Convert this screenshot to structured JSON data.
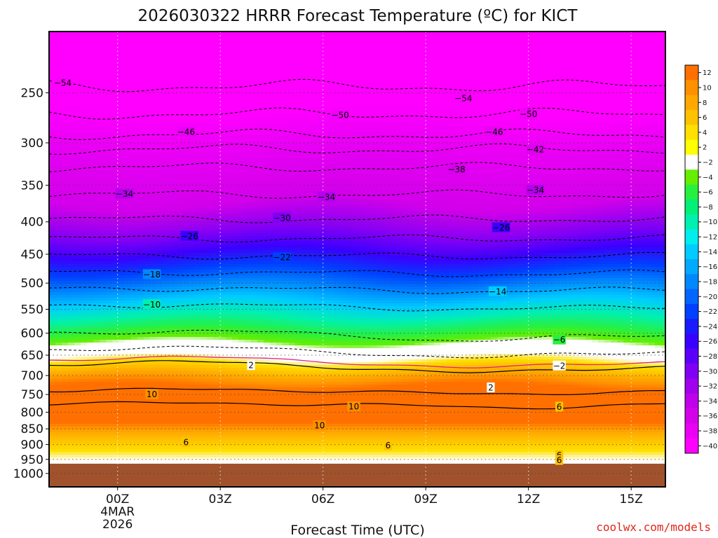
{
  "chart_data": {
    "type": "heatmap",
    "title": "2026030322 HRRR Forecast Temperature (ºC) for KICT",
    "xlabel": "Forecast Time (UTC)",
    "credit": "coolwx.com/models",
    "x_range_hours": [
      -1,
      17
    ],
    "x_ticks": [
      {
        "h": 1,
        "label": "00Z",
        "sub": [
          "4MAR",
          "2026"
        ]
      },
      {
        "h": 4,
        "label": "03Z"
      },
      {
        "h": 7,
        "label": "06Z"
      },
      {
        "h": 10,
        "label": "09Z"
      },
      {
        "h": 13,
        "label": "12Z"
      },
      {
        "h": 16,
        "label": "15Z"
      }
    ],
    "y_axis": {
      "type": "pressure",
      "range": [
        1050,
        200
      ],
      "ticks": [
        250,
        300,
        350,
        400,
        450,
        500,
        550,
        600,
        650,
        700,
        750,
        800,
        850,
        900,
        950,
        1000
      ]
    },
    "surface_pressure_hpa": 965,
    "color_scale": [
      {
        "label": "-40",
        "color": "#ff00ff"
      },
      {
        "label": "-38",
        "color": "#ea00f4"
      },
      {
        "label": "-36",
        "color": "#d500ea"
      },
      {
        "label": "-34",
        "color": "#bf00ea"
      },
      {
        "label": "-32",
        "color": "#a000ee"
      },
      {
        "label": "-30",
        "color": "#8000f4"
      },
      {
        "label": "-28",
        "color": "#5a00fa"
      },
      {
        "label": "-26",
        "color": "#3a00ff"
      },
      {
        "label": "-24",
        "color": "#1a1aff"
      },
      {
        "label": "-22",
        "color": "#0040ff"
      },
      {
        "label": "-20",
        "color": "#0066ff"
      },
      {
        "label": "-18",
        "color": "#0088ff"
      },
      {
        "label": "-16",
        "color": "#00aaff"
      },
      {
        "label": "-14",
        "color": "#00ccff"
      },
      {
        "label": "-12",
        "color": "#00eeee"
      },
      {
        "label": "-10",
        "color": "#00f0b0"
      },
      {
        "label": "-8",
        "color": "#00f078"
      },
      {
        "label": "-6",
        "color": "#28f040"
      },
      {
        "label": "-4",
        "color": "#66ee00"
      },
      {
        "label": "-2",
        "color": "#ffffff"
      },
      {
        "label": "2",
        "color": "#ffff00"
      },
      {
        "label": "4",
        "color": "#ffe000"
      },
      {
        "label": "6",
        "color": "#ffc200"
      },
      {
        "label": "8",
        "color": "#ffa800"
      },
      {
        "label": "10",
        "color": "#ff9000"
      },
      {
        "label": "12",
        "color": "#ff7000"
      }
    ],
    "contour_labels": [
      {
        "value": "-54",
        "h": -0.6,
        "p": 241
      },
      {
        "value": "-54",
        "h": 11.1,
        "p": 255
      },
      {
        "value": "-50",
        "h": 7.5,
        "p": 271
      },
      {
        "value": "-50",
        "h": 13.0,
        "p": 270
      },
      {
        "value": "-46",
        "h": 3.0,
        "p": 288
      },
      {
        "value": "-46",
        "h": 12.0,
        "p": 288
      },
      {
        "value": "-42",
        "h": 13.2,
        "p": 307
      },
      {
        "value": "-38",
        "h": 10.9,
        "p": 330
      },
      {
        "value": "-34",
        "h": 1.2,
        "p": 361
      },
      {
        "value": "-34",
        "h": 7.1,
        "p": 365
      },
      {
        "value": "-34",
        "h": 13.2,
        "p": 356
      },
      {
        "value": "-30",
        "h": 5.8,
        "p": 394
      },
      {
        "value": "-26",
        "h": 3.1,
        "p": 421
      },
      {
        "value": "-26",
        "h": 12.2,
        "p": 408
      },
      {
        "value": "-22",
        "h": 5.8,
        "p": 455
      },
      {
        "value": "-18",
        "h": 2.0,
        "p": 484
      },
      {
        "value": "-14",
        "h": 12.1,
        "p": 515
      },
      {
        "value": "-10",
        "h": 2.0,
        "p": 540
      },
      {
        "value": "-6",
        "h": 13.9,
        "p": 614
      },
      {
        "value": "-2",
        "h": 13.9,
        "p": 675
      },
      {
        "value": "2",
        "h": 4.9,
        "p": 674
      },
      {
        "value": "2",
        "h": 11.9,
        "p": 731
      },
      {
        "value": "10",
        "h": 2.0,
        "p": 749
      },
      {
        "value": "10",
        "h": 7.9,
        "p": 783
      },
      {
        "value": "10",
        "h": 6.9,
        "p": 839
      },
      {
        "value": "6",
        "h": 13.9,
        "p": 784
      },
      {
        "value": "6",
        "h": 3.0,
        "p": 892
      },
      {
        "value": "6",
        "h": 8.9,
        "p": 902
      },
      {
        "value": "6",
        "h": 13.9,
        "p": 935
      },
      {
        "value": "6",
        "h": 13.9,
        "p": 952
      }
    ]
  }
}
